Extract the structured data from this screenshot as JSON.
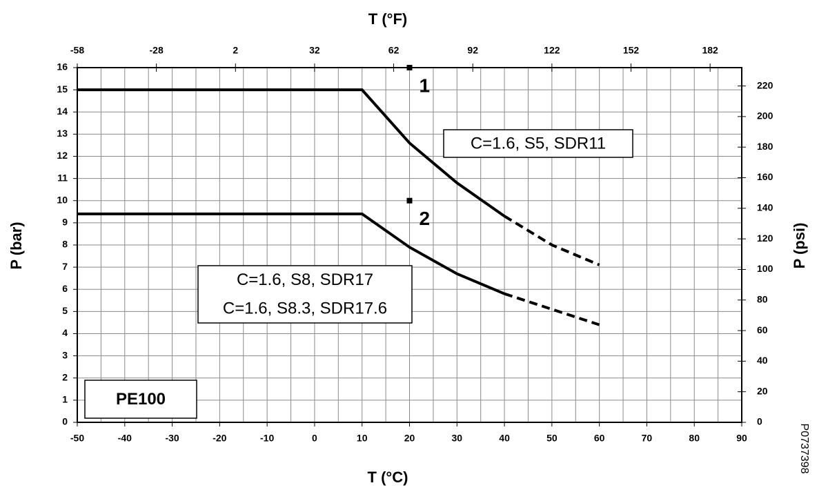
{
  "chart_data": {
    "type": "line",
    "x_label": "T (°C)",
    "x2_label": "T (°F)",
    "y_label": "P (bar)",
    "y2_label": "P (psi)",
    "x": [
      -50,
      10,
      20,
      30,
      40,
      50,
      60
    ],
    "xlim": [
      -50,
      90
    ],
    "xticks": [
      -50,
      -40,
      -30,
      -20,
      -10,
      0,
      10,
      20,
      30,
      40,
      50,
      60,
      70,
      80,
      90
    ],
    "ylim": [
      0,
      16
    ],
    "yticks": [
      0,
      1,
      2,
      3,
      4,
      5,
      6,
      7,
      8,
      9,
      10,
      11,
      12,
      13,
      14,
      15,
      16
    ],
    "x2lim": [
      -58,
      194
    ],
    "x2ticks": [
      -58,
      -28,
      2,
      32,
      62,
      92,
      122,
      152,
      182
    ],
    "y2lim": [
      0,
      232
    ],
    "y2ticks": [
      0,
      20,
      40,
      60,
      80,
      100,
      120,
      140,
      160,
      180,
      200,
      220
    ],
    "grid": true,
    "series": [
      {
        "name": "1",
        "color": "#000000",
        "dashed": false,
        "values": [
          15,
          15,
          12.6,
          10.8,
          9.3,
          null,
          null
        ]
      },
      {
        "color": "#000000",
        "dashed": true,
        "values": [
          null,
          null,
          null,
          null,
          9.3,
          8.0,
          7.1
        ]
      },
      {
        "name": "2",
        "color": "#000000",
        "dashed": false,
        "values": [
          9.4,
          9.4,
          7.9,
          6.7,
          5.8,
          null,
          null
        ]
      },
      {
        "color": "#000000",
        "dashed": true,
        "values": [
          null,
          null,
          null,
          null,
          5.8,
          5.1,
          4.4
        ]
      }
    ],
    "markers": [
      {
        "x": 20,
        "y": 16
      },
      {
        "x": 20,
        "y": 10
      }
    ],
    "notes": [
      "C=1.6, S5, SDR11",
      "C=1.6, S8, SDR17",
      "C=1.6, S8.3, SDR17.6",
      "PE100"
    ],
    "code": "P0737398"
  }
}
